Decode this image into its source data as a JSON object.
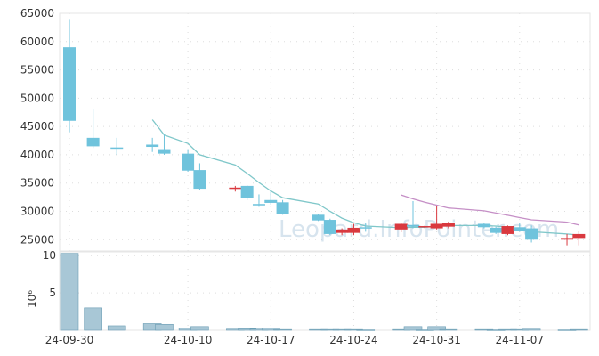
{
  "watermark": "Leopard.InfoPointer.com",
  "volume_unit_label": "10⁶",
  "colors": {
    "up": "#d9393f",
    "down": "#6fc3dc",
    "ma_short": "#7fc7c9",
    "ma_long": "#c58fc6",
    "volume": "#a8c7d6",
    "volume_edge": "#6b9db4"
  },
  "chart_data": {
    "type": "candlestick",
    "title": "",
    "price_axis": {
      "ticks": [
        25000,
        30000,
        35000,
        40000,
        45000,
        50000,
        55000,
        60000,
        65000
      ],
      "range": [
        23000,
        65000
      ]
    },
    "volume_axis": {
      "ticks": [
        5,
        10
      ],
      "range": [
        0,
        10.5
      ],
      "unit": "10⁶"
    },
    "x_tick_labels": [
      {
        "date": "2024-09-30",
        "label": "24-09-30"
      },
      {
        "date": "2024-10-10",
        "label": "24-10-10"
      },
      {
        "date": "2024-10-17",
        "label": "24-10-17"
      },
      {
        "date": "2024-10-24",
        "label": "24-10-24"
      },
      {
        "date": "2024-10-31",
        "label": "24-10-31"
      },
      {
        "date": "2024-11-07",
        "label": "24-11-07"
      }
    ],
    "candles": [
      {
        "date": "2024-09-30",
        "open": 59000,
        "high": 64000,
        "low": 44000,
        "close": 46000,
        "volume": 10.3
      },
      {
        "date": "2024-10-02",
        "open": 43000,
        "high": 48000,
        "low": 41200,
        "close": 41500,
        "volume": 3.0
      },
      {
        "date": "2024-10-04",
        "open": 41300,
        "high": 43000,
        "low": 40000,
        "close": 41100,
        "volume": 0.6
      },
      {
        "date": "2024-10-07",
        "open": 41800,
        "high": 43000,
        "low": 40500,
        "close": 41400,
        "volume": 0.9
      },
      {
        "date": "2024-10-08",
        "open": 41000,
        "high": 43500,
        "low": 40000,
        "close": 40200,
        "volume": 0.8
      },
      {
        "date": "2024-10-10",
        "open": 40200,
        "high": 41000,
        "low": 37000,
        "close": 37200,
        "volume": 0.3
      },
      {
        "date": "2024-10-11",
        "open": 37300,
        "high": 38500,
        "low": 33800,
        "close": 34000,
        "volume": 0.5
      },
      {
        "date": "2024-10-14",
        "open": 34000,
        "high": 34500,
        "low": 33500,
        "close": 34200,
        "volume": 0.15
      },
      {
        "date": "2024-10-15",
        "open": 34500,
        "high": 34600,
        "low": 32000,
        "close": 32300,
        "volume": 0.2
      },
      {
        "date": "2024-10-16",
        "open": 31300,
        "high": 33000,
        "low": 30800,
        "close": 31200,
        "volume": 0.15
      },
      {
        "date": "2024-10-17",
        "open": 32000,
        "high": 33600,
        "low": 31200,
        "close": 31500,
        "volume": 0.3
      },
      {
        "date": "2024-10-18",
        "open": 31600,
        "high": 32000,
        "low": 29400,
        "close": 29600,
        "volume": 0.1
      },
      {
        "date": "2024-10-21",
        "open": 29400,
        "high": 29600,
        "low": 28300,
        "close": 28400,
        "volume": 0.1
      },
      {
        "date": "2024-10-22",
        "open": 28500,
        "high": 28700,
        "low": 25800,
        "close": 26000,
        "volume": 0.1
      },
      {
        "date": "2024-10-23",
        "open": 26200,
        "high": 27000,
        "low": 25800,
        "close": 26800,
        "volume": 0.1
      },
      {
        "date": "2024-10-24",
        "open": 26200,
        "high": 27800,
        "low": 25800,
        "close": 27100,
        "volume": 0.1
      },
      {
        "date": "2024-10-25",
        "open": 27200,
        "high": 28000,
        "low": 26400,
        "close": 27000,
        "volume": 0.05
      },
      {
        "date": "2024-10-28",
        "open": 26800,
        "high": 28000,
        "low": 26300,
        "close": 27800,
        "volume": 0.1
      },
      {
        "date": "2024-10-29",
        "open": 27600,
        "high": 31800,
        "low": 27000,
        "close": 27300,
        "volume": 0.5
      },
      {
        "date": "2024-10-30",
        "open": 27300,
        "high": 27500,
        "low": 27000,
        "close": 27400,
        "volume": 0.05
      },
      {
        "date": "2024-10-31",
        "open": 27000,
        "high": 31000,
        "low": 26800,
        "close": 27800,
        "volume": 0.5
      },
      {
        "date": "2024-11-01",
        "open": 27300,
        "high": 28200,
        "low": 27000,
        "close": 27900,
        "volume": 0.1
      },
      {
        "date": "2024-11-04",
        "open": 27800,
        "high": 28000,
        "low": 27000,
        "close": 27200,
        "volume": 0.1
      },
      {
        "date": "2024-11-05",
        "open": 27100,
        "high": 27300,
        "low": 26000,
        "close": 26200,
        "volume": 0.05
      },
      {
        "date": "2024-11-06",
        "open": 26000,
        "high": 27500,
        "low": 25800,
        "close": 27400,
        "volume": 0.1
      },
      {
        "date": "2024-11-07",
        "open": 27200,
        "high": 28000,
        "low": 26400,
        "close": 26600,
        "volume": 0.1
      },
      {
        "date": "2024-11-08",
        "open": 27000,
        "high": 27500,
        "low": 24500,
        "close": 25000,
        "volume": 0.15
      },
      {
        "date": "2024-11-11",
        "open": 25000,
        "high": 26000,
        "low": 24000,
        "close": 25300,
        "volume": 0.05
      },
      {
        "date": "2024-11-12",
        "open": 25300,
        "high": 26500,
        "low": 24000,
        "close": 26000,
        "volume": 0.1
      }
    ],
    "ma_short": [
      {
        "date": "2024-10-07",
        "value": 46200
      },
      {
        "date": "2024-10-08",
        "value": 43500
      },
      {
        "date": "2024-10-10",
        "value": 42000
      },
      {
        "date": "2024-10-11",
        "value": 40000
      },
      {
        "date": "2024-10-14",
        "value": 38200
      },
      {
        "date": "2024-10-15",
        "value": 36700
      },
      {
        "date": "2024-10-16",
        "value": 35100
      },
      {
        "date": "2024-10-17",
        "value": 33600
      },
      {
        "date": "2024-10-18",
        "value": 32400
      },
      {
        "date": "2024-10-21",
        "value": 31300
      },
      {
        "date": "2024-10-22",
        "value": 30000
      },
      {
        "date": "2024-10-23",
        "value": 28800
      },
      {
        "date": "2024-10-24",
        "value": 28000
      },
      {
        "date": "2024-10-25",
        "value": 27400
      },
      {
        "date": "2024-10-28",
        "value": 27100
      },
      {
        "date": "2024-10-29",
        "value": 27200
      },
      {
        "date": "2024-10-30",
        "value": 27200
      },
      {
        "date": "2024-10-31",
        "value": 27400
      },
      {
        "date": "2024-11-01",
        "value": 27500
      },
      {
        "date": "2024-11-04",
        "value": 27500
      },
      {
        "date": "2024-11-05",
        "value": 27400
      },
      {
        "date": "2024-11-06",
        "value": 27200
      },
      {
        "date": "2024-11-07",
        "value": 26900
      },
      {
        "date": "2024-11-08",
        "value": 26400
      },
      {
        "date": "2024-11-11",
        "value": 26000
      },
      {
        "date": "2024-11-12",
        "value": 25800
      }
    ],
    "ma_long": [
      {
        "date": "2024-10-28",
        "value": 32900
      },
      {
        "date": "2024-10-29",
        "value": 32200
      },
      {
        "date": "2024-10-30",
        "value": 31600
      },
      {
        "date": "2024-10-31",
        "value": 31100
      },
      {
        "date": "2024-11-01",
        "value": 30600
      },
      {
        "date": "2024-11-04",
        "value": 30100
      },
      {
        "date": "2024-11-05",
        "value": 29700
      },
      {
        "date": "2024-11-06",
        "value": 29300
      },
      {
        "date": "2024-11-07",
        "value": 28900
      },
      {
        "date": "2024-11-08",
        "value": 28500
      },
      {
        "date": "2024-11-11",
        "value": 28100
      },
      {
        "date": "2024-11-12",
        "value": 27600
      }
    ]
  }
}
